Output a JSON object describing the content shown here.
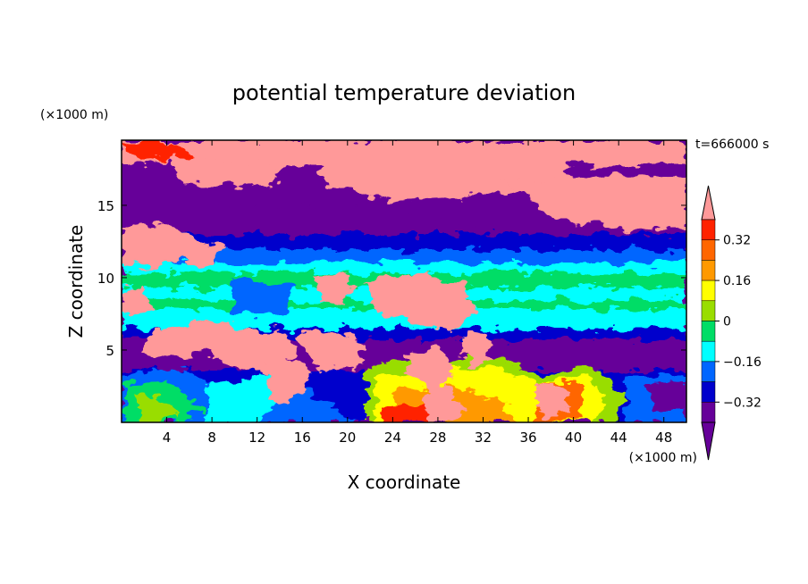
{
  "chart_data": {
    "type": "heatmap",
    "title": "potential temperature deviation",
    "xlabel": "X coordinate",
    "ylabel": "Z coordinate",
    "x_unit": "(×1000 m)",
    "y_unit": "(×1000 m)",
    "time_label": "t=666000 s",
    "xlim": [
      0,
      50
    ],
    "ylim": [
      0,
      19.5
    ],
    "xticks": [
      4,
      8,
      12,
      16,
      20,
      24,
      28,
      32,
      36,
      40,
      44,
      48
    ],
    "yticks": [
      5,
      10,
      15
    ],
    "colorbar": {
      "levels": [
        -0.4,
        -0.32,
        -0.24,
        -0.16,
        -0.08,
        0,
        0.08,
        0.16,
        0.24,
        0.32,
        0.4
      ],
      "tick_labels": [
        "0.32",
        "0.16",
        "0",
        "−0.16",
        "−0.32"
      ],
      "tick_values": [
        0.32,
        0.16,
        0,
        -0.16,
        -0.32
      ],
      "colors": [
        "#ff9999",
        "#ff2200",
        "#ff6600",
        "#ff9900",
        "#ffff00",
        "#99dd00",
        "#00dd66",
        "#00ffff",
        "#0066ff",
        "#0000cc",
        "#660099"
      ],
      "extend": "both"
    },
    "layers": [
      {
        "z_range": [
          0,
          3
        ],
        "description": "warm anomalies near 24-34 and 36-42",
        "max_value": 0.35
      },
      {
        "z_range": [
          6,
          9
        ],
        "value": -0.2
      },
      {
        "z_range": [
          9,
          11
        ],
        "value": -0.05
      },
      {
        "z_range": [
          11,
          13
        ],
        "value": -0.35
      },
      {
        "z_range": [
          13,
          19.5
        ],
        "value": -0.45
      }
    ]
  }
}
